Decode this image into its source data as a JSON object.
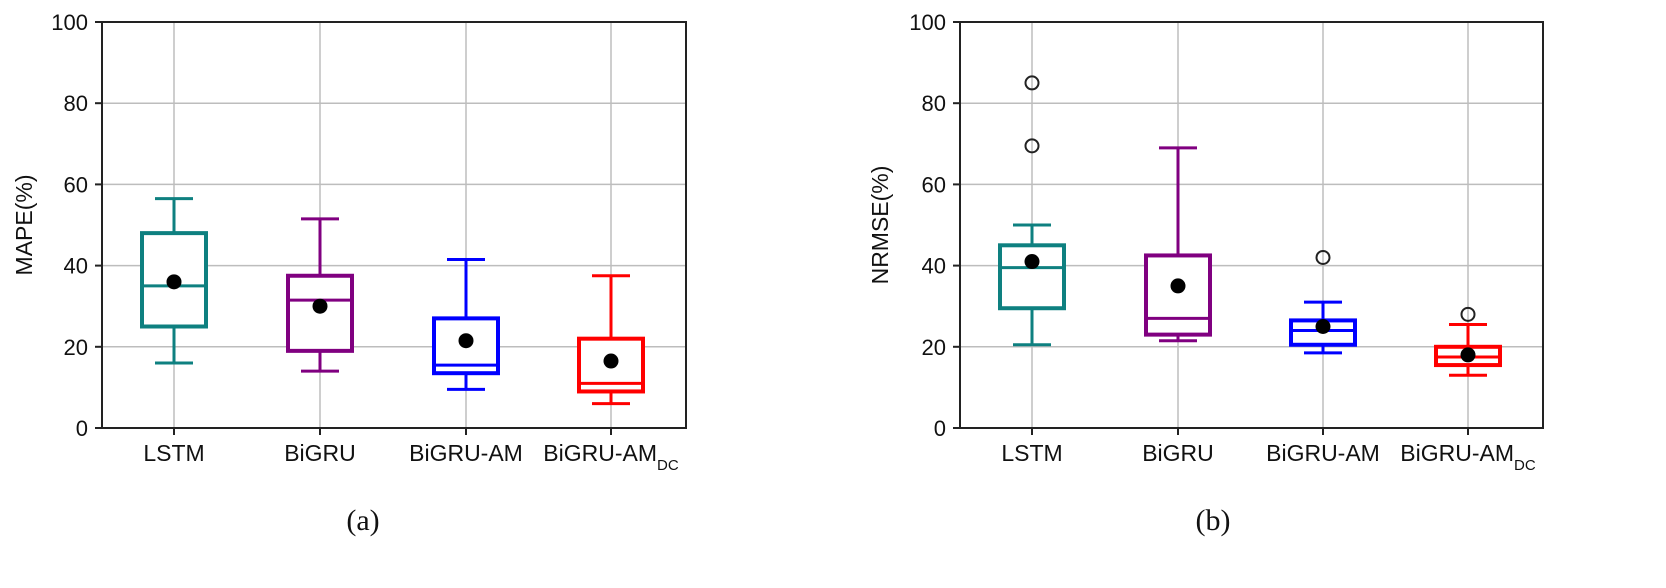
{
  "chart_data": [
    {
      "type": "box",
      "panel_label": "(a)",
      "ylabel": "MAPE(%)",
      "ylim": [
        0,
        100
      ],
      "yticks": [
        0,
        20,
        40,
        60,
        80,
        100
      ],
      "grid": true,
      "categories": [
        {
          "base": "LSTM",
          "sub": ""
        },
        {
          "base": "BiGRU",
          "sub": ""
        },
        {
          "base": "BiGRU-AM",
          "sub": ""
        },
        {
          "base": "BiGRU-AM",
          "sub": "DC"
        }
      ],
      "colors": [
        "#0e8080",
        "#800080",
        "#0000ff",
        "#ff0000"
      ],
      "boxes": [
        {
          "whisker_low": 16,
          "q1": 25,
          "median": 35,
          "q3": 48,
          "whisker_high": 56.5,
          "mean": 36,
          "outliers": []
        },
        {
          "whisker_low": 14,
          "q1": 19,
          "median": 31.5,
          "q3": 37.5,
          "whisker_high": 51.5,
          "mean": 30,
          "outliers": []
        },
        {
          "whisker_low": 9.5,
          "q1": 13.5,
          "median": 15.5,
          "q3": 27,
          "whisker_high": 41.5,
          "mean": 21.5,
          "outliers": []
        },
        {
          "whisker_low": 6,
          "q1": 9,
          "median": 11,
          "q3": 22,
          "whisker_high": 37.5,
          "mean": 16.5,
          "outliers": []
        }
      ]
    },
    {
      "type": "box",
      "panel_label": "(b)",
      "ylabel": "NRMSE(%)",
      "ylim": [
        0,
        100
      ],
      "yticks": [
        0,
        20,
        40,
        60,
        80,
        100
      ],
      "grid": true,
      "categories": [
        {
          "base": "LSTM",
          "sub": ""
        },
        {
          "base": "BiGRU",
          "sub": ""
        },
        {
          "base": "BiGRU-AM",
          "sub": ""
        },
        {
          "base": "BiGRU-AM",
          "sub": "DC"
        }
      ],
      "colors": [
        "#0e8080",
        "#800080",
        "#0000ff",
        "#ff0000"
      ],
      "boxes": [
        {
          "whisker_low": 20.5,
          "q1": 29.5,
          "median": 39.5,
          "q3": 45,
          "whisker_high": 50,
          "mean": 41,
          "outliers": [
            69.5,
            85
          ]
        },
        {
          "whisker_low": 21.5,
          "q1": 23,
          "median": 27,
          "q3": 42.5,
          "whisker_high": 69,
          "mean": 35,
          "outliers": []
        },
        {
          "whisker_low": 18.5,
          "q1": 20.5,
          "median": 24,
          "q3": 26.5,
          "whisker_high": 31,
          "mean": 25,
          "outliers": [
            42
          ]
        },
        {
          "whisker_low": 13,
          "q1": 15.5,
          "median": 17.5,
          "q3": 20,
          "whisker_high": 25.5,
          "mean": 18,
          "outliers": [
            28
          ]
        }
      ]
    }
  ]
}
